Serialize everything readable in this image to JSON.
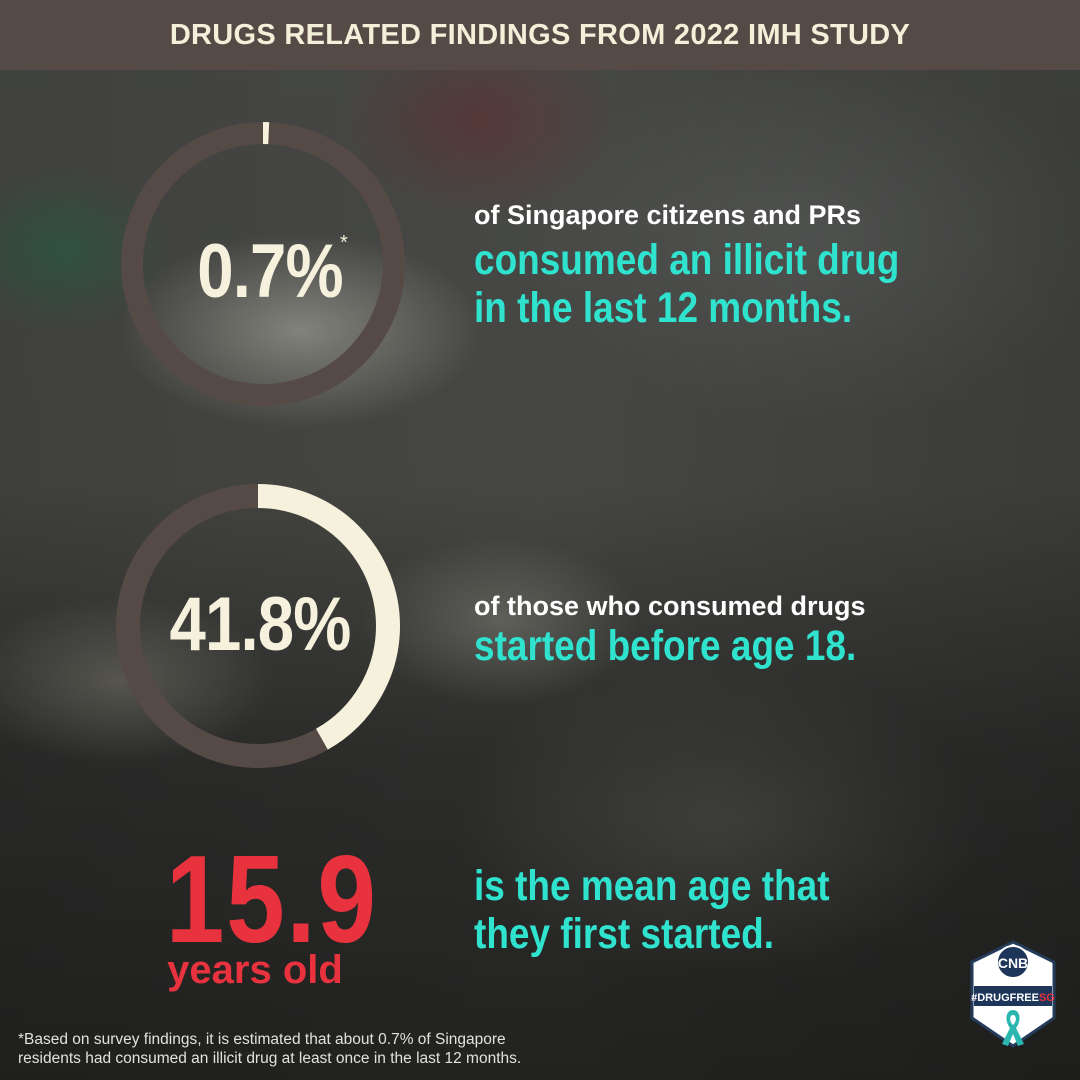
{
  "header": {
    "title": "DRUGS RELATED FINDINGS FROM 2022 IMH STUDY"
  },
  "findings": [
    {
      "value": "0.7%",
      "fraction": 0.007,
      "marker": "*",
      "line1": "of Singapore citizens and PRs",
      "line2": "consumed an illicit drug",
      "line3": "in the last 12 months."
    },
    {
      "value": "41.8%",
      "fraction": 0.418,
      "line1": "of those who consumed drugs",
      "line2": "started before age 18."
    },
    {
      "value": "15.9",
      "unit": "years old",
      "line1": "is the mean age that",
      "line2": "they first started."
    }
  ],
  "footnote": {
    "line1": "*Based on survey findings, it is estimated that about 0.7% of Singapore",
    "line2": "residents had consumed an illicit drug at least once in the last 12 months."
  },
  "logo": {
    "top": "CNB",
    "bottom": "#DRUGFREE",
    "accent": "SG",
    "icon": "teal-ribbon-icon"
  },
  "colors": {
    "banner": "#564a46",
    "ring_track": "#564a46",
    "ring_fill": "#f5f1dc",
    "teal": "#2fe3cf",
    "red": "#e8323e"
  }
}
